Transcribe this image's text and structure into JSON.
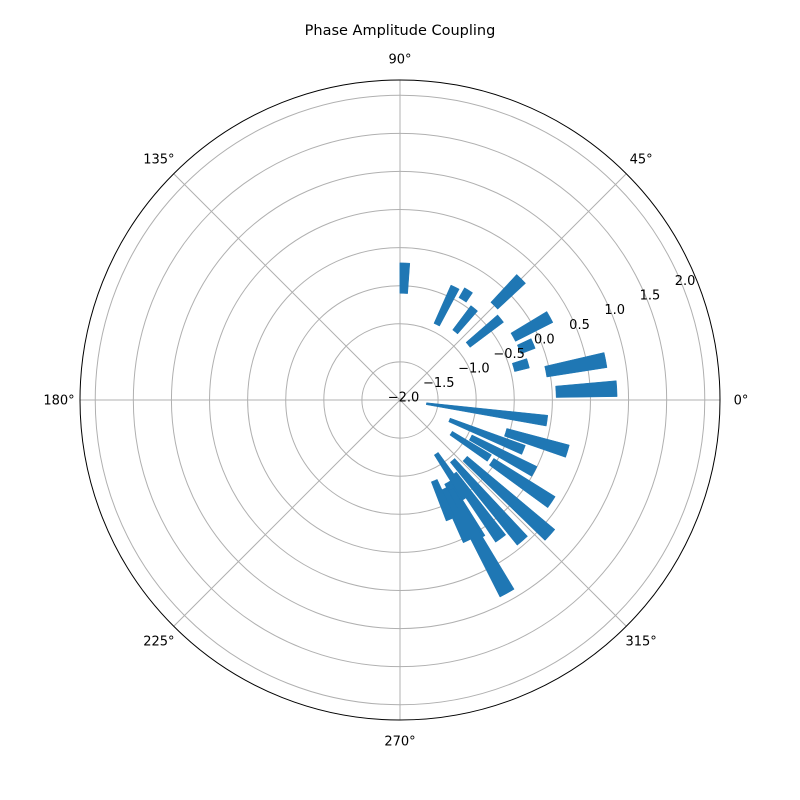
{
  "chart_data": {
    "type": "polar-bar",
    "title": "Phase Amplitude Coupling",
    "angle_tick_labels": [
      "0°",
      "45°",
      "90°",
      "135°",
      "180°",
      "225°",
      "270°",
      "315°"
    ],
    "radial_tick_labels": [
      "−2.0",
      "−1.5",
      "−1.0",
      "−0.5",
      "0.0",
      "0.5",
      "1.0",
      "1.5",
      "2.0"
    ],
    "rlim": [
      -2.0,
      2.2
    ],
    "grid": true,
    "bar_color": "#1f77b4",
    "bars": [
      {
        "angle": 3,
        "bottom": 0.05,
        "top": 0.85
      },
      {
        "angle": 11,
        "bottom": -0.05,
        "top": 0.75
      },
      {
        "angle": 16,
        "bottom": -0.45,
        "top": -0.25
      },
      {
        "angle": 23,
        "bottom": -0.3,
        "top": -0.1
      },
      {
        "angle": 29,
        "bottom": -0.3,
        "top": 0.25
      },
      {
        "angle": 39,
        "bottom": -0.85,
        "top": -0.3
      },
      {
        "angle": 45,
        "bottom": -0.25,
        "top": 0.25
      },
      {
        "angle": 51,
        "bottom": -0.85,
        "top": -0.45
      },
      {
        "angle": 58,
        "bottom": -0.45,
        "top": -0.3
      },
      {
        "angle": 64,
        "bottom": -0.9,
        "top": -0.35
      },
      {
        "angle": 88,
        "bottom": -0.6,
        "top": -0.2
      },
      {
        "angle": 352,
        "bottom": -1.65,
        "top": -0.05
      },
      {
        "angle": 343,
        "bottom": -0.55,
        "top": 0.3
      },
      {
        "angle": 338,
        "bottom": -1.3,
        "top": -0.25
      },
      {
        "angle": 332,
        "bottom": -0.95,
        "top": 0.0
      },
      {
        "angle": 327,
        "bottom": -1.2,
        "top": -0.6
      },
      {
        "angle": 326,
        "bottom": -0.55,
        "top": 0.4
      },
      {
        "angle": 318,
        "bottom": -0.85,
        "top": 0.65
      },
      {
        "angle": 311,
        "bottom": -0.95,
        "top": 0.45
      },
      {
        "angle": 306,
        "bottom": -0.8,
        "top": 0.25
      },
      {
        "angle": 304,
        "bottom": -1.15,
        "top": -0.45
      },
      {
        "angle": 300,
        "bottom": -0.75,
        "top": 0.1
      },
      {
        "angle": 299,
        "bottom": -0.65,
        "top": 0.9
      },
      {
        "angle": 296,
        "bottom": -0.7,
        "top": 0.05
      },
      {
        "angle": 293,
        "bottom": -0.85,
        "top": -0.3
      }
    ]
  }
}
